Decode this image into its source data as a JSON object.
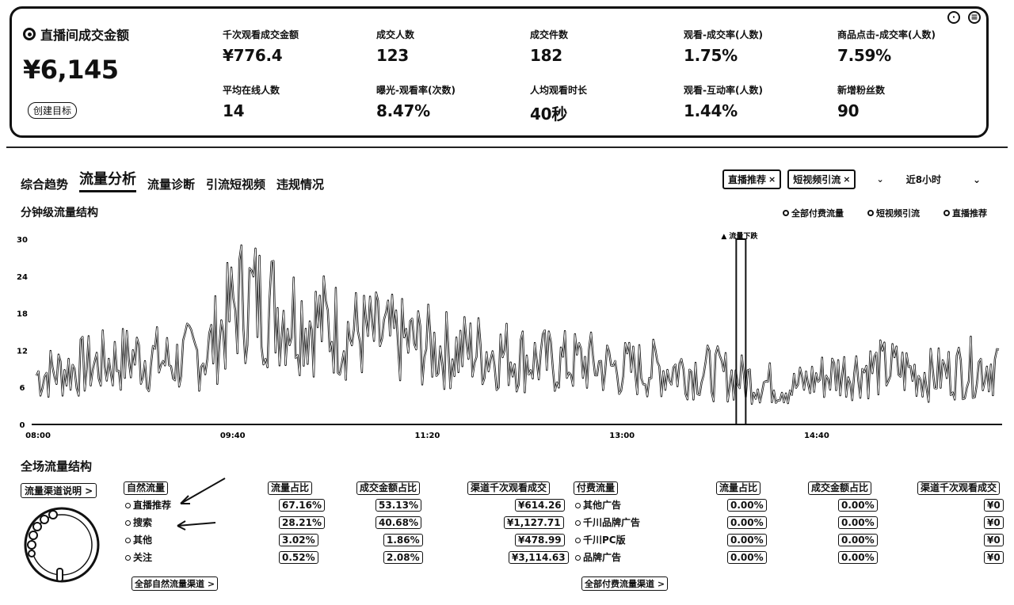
{
  "summary": {
    "main_label": "直播间成交金额",
    "main_value": "¥6,145",
    "create_goal": "创建目标",
    "metrics": [
      {
        "label": "千次观看成交金额",
        "value": "¥776.4"
      },
      {
        "label": "成交人数",
        "value": "123"
      },
      {
        "label": "成交件数",
        "value": "182"
      },
      {
        "label": "观看-成交率(人数)",
        "value": "1.75%"
      },
      {
        "label": "商品点击-成交率(人数)",
        "value": "7.59%"
      },
      {
        "label": "平均在线人数",
        "value": "14"
      },
      {
        "label": "曝光-观看率(次数)",
        "value": "8.47%"
      },
      {
        "label": "人均观看时长",
        "value": "40秒"
      },
      {
        "label": "观看-互动率(人数)",
        "value": "1.44%"
      },
      {
        "label": "新增粉丝数",
        "value": "90"
      }
    ]
  },
  "tabs": [
    {
      "label": "综合趋势"
    },
    {
      "label": "流量分析"
    },
    {
      "label": "流量诊断"
    },
    {
      "label": "引流短视频"
    },
    {
      "label": "违规情况"
    }
  ],
  "filters": {
    "chips": [
      "直播推荐",
      "短视频引流"
    ],
    "range": "近8小时"
  },
  "chart_section": {
    "title": "分钟级流量结构",
    "legend": [
      "全部付费流量",
      "短视频引流",
      "直播推荐"
    ]
  },
  "chart_data": {
    "type": "line",
    "title": "分钟级流量结构",
    "x_tick_labels": [
      "08:00",
      "09:40",
      "11:20",
      "13:00",
      "14:40"
    ],
    "y_tick_labels": [
      "0",
      "6",
      "12",
      "18",
      "24",
      "30"
    ],
    "ylim": [
      0,
      30
    ],
    "annotation": "流量下跌",
    "series": [
      {
        "name": "直播推荐",
        "trend": [
          8,
          9,
          10,
          11,
          10,
          12,
          21,
          19,
          17,
          15,
          14,
          13,
          12,
          12,
          11,
          10,
          10,
          9,
          9,
          9,
          8,
          7,
          6,
          8,
          9,
          9,
          8,
          9,
          10
        ]
      }
    ]
  },
  "bottom": {
    "title": "全场流量结构",
    "channel_note": "流量渠道说明 >",
    "natural": {
      "headers": [
        "自然流量",
        "流量占比",
        "成交金额占比",
        "渠道千次观看成交"
      ],
      "rows": [
        {
          "name": "直播推荐",
          "share": "67.16%",
          "gmv_share": "53.13%",
          "gpm": "¥614.26"
        },
        {
          "name": "搜索",
          "share": "28.21%",
          "gmv_share": "40.68%",
          "gpm": "¥1,127.71"
        },
        {
          "name": "其他",
          "share": "3.02%",
          "gmv_share": "1.86%",
          "gpm": "¥478.99"
        },
        {
          "name": "关注",
          "share": "0.52%",
          "gmv_share": "2.08%",
          "gpm": "¥3,114.63"
        }
      ],
      "more": "全部自然流量渠道 >"
    },
    "paid": {
      "headers": [
        "付费流量",
        "流量占比",
        "成交金额占比",
        "渠道千次观看成交"
      ],
      "rows": [
        {
          "name": "其他广告",
          "share": "0.00%",
          "gmv_share": "0.00%",
          "gpm": "¥0"
        },
        {
          "name": "千川品牌广告",
          "share": "0.00%",
          "gmv_share": "0.00%",
          "gpm": "¥0"
        },
        {
          "name": "千川PC版",
          "share": "0.00%",
          "gmv_share": "0.00%",
          "gpm": "¥0"
        },
        {
          "name": "品牌广告",
          "share": "0.00%",
          "gmv_share": "0.00%",
          "gpm": "¥0"
        }
      ],
      "more": "全部付费流量渠道 >"
    }
  }
}
